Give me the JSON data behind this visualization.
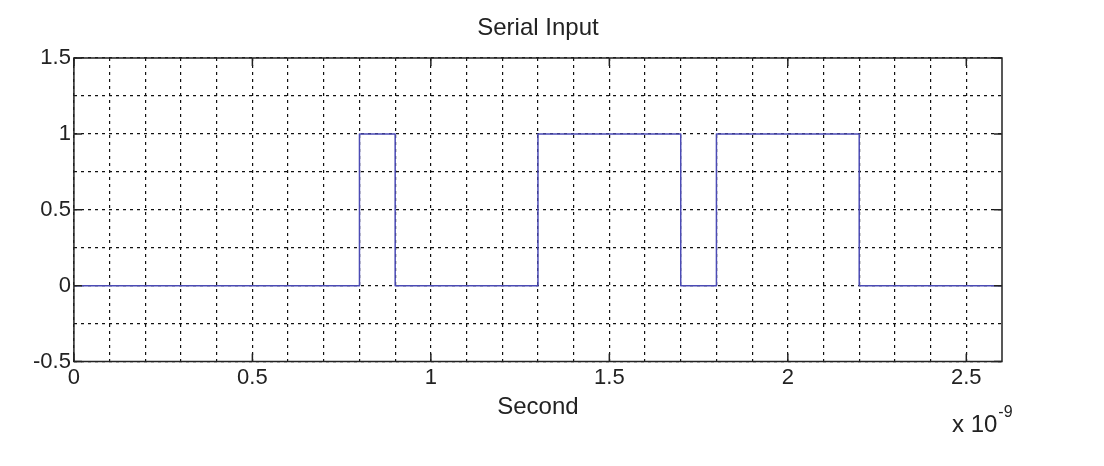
{
  "chart_data": {
    "type": "step",
    "title": "Serial Input",
    "xlabel": "Second",
    "annotations": [
      "x 10$^{-9}$"
    ],
    "x": [
      0,
      0.8,
      0.9,
      1.3,
      1.7,
      1.8,
      2.2,
      2.6
    ],
    "series": [
      {
        "color": "#4b4bb5",
        "values": [
          0,
          1,
          0,
          1,
          0,
          1,
          0,
          0
        ]
      }
    ],
    "xlim": [
      0,
      2.6
    ],
    "xticks": [
      0,
      {
        "value": 0.1,
        "label": null
      },
      {
        "value": 0.2,
        "label": null
      },
      {
        "value": 0.3,
        "label": null
      },
      {
        "value": 0.4,
        "label": null
      },
      0.5,
      {
        "value": 0.6,
        "label": null
      },
      {
        "value": 0.7,
        "label": null
      },
      {
        "value": 0.8,
        "label": null
      },
      {
        "value": 0.9,
        "label": null
      },
      1,
      {
        "value": 1.1,
        "label": null
      },
      {
        "value": 1.2,
        "label": null
      },
      {
        "value": 1.3,
        "label": null
      },
      {
        "value": 1.4,
        "label": null
      },
      1.5,
      {
        "value": 1.6,
        "label": null
      },
      {
        "value": 1.7,
        "label": null
      },
      {
        "value": 1.8,
        "label": null
      },
      {
        "value": 1.9,
        "label": null
      },
      2,
      {
        "value": 2.1,
        "label": null
      },
      {
        "value": 2.2,
        "label": null
      },
      {
        "value": 2.3,
        "label": null
      },
      {
        "value": 2.4,
        "label": null
      },
      2.5
    ],
    "ylim": [
      -0.5,
      1.5
    ],
    "yticks": [
      -0.5,
      {
        "value": -0.25,
        "label": null
      },
      0,
      {
        "value": 0.25,
        "label": null
      },
      0.5,
      {
        "value": 0.75,
        "label": null
      },
      1,
      {
        "value": 1.25,
        "label": null
      },
      1.5
    ],
    "grid": true,
    "legend": false,
    "marker": "none",
    "line_style": "solid"
  }
}
